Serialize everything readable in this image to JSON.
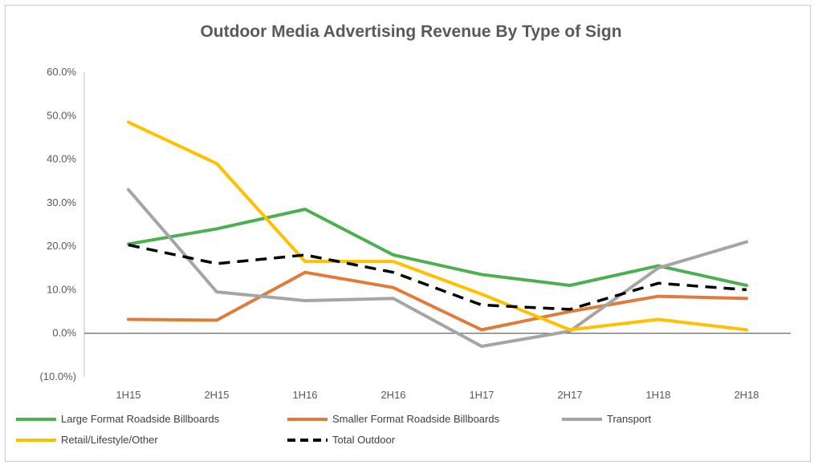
{
  "chart_data": {
    "type": "line",
    "title": "Outdoor Media Advertising Revenue By Type of Sign",
    "categories": [
      "1H15",
      "2H15",
      "1H16",
      "2H16",
      "1H17",
      "2H17",
      "1H18",
      "2H18"
    ],
    "ylim": [
      -10,
      60
    ],
    "yticks": [
      {
        "value": 60,
        "label": "60.0%"
      },
      {
        "value": 50,
        "label": "50.0%"
      },
      {
        "value": 40,
        "label": "40.0%"
      },
      {
        "value": 30,
        "label": "30.0%"
      },
      {
        "value": 20,
        "label": "20.0%"
      },
      {
        "value": 10,
        "label": "10.0%"
      },
      {
        "value": 0,
        "label": "0.0%"
      },
      {
        "value": -10,
        "label": "(10.0%)"
      }
    ],
    "negative_tick_color": "#ff0000",
    "grid": false,
    "legend_position": "bottom",
    "series": [
      {
        "name": "Large Format Roadside Billboards",
        "color": "#4caf50",
        "dash": false,
        "values": [
          20.5,
          24,
          28.5,
          18,
          13.5,
          11,
          15.5,
          11
        ]
      },
      {
        "name": "Smaller Format Roadside Billboards",
        "color": "#e07b39",
        "dash": false,
        "values": [
          3.2,
          3,
          14,
          10.5,
          0.8,
          5,
          8.5,
          8
        ]
      },
      {
        "name": "Transport",
        "color": "#a5a5a5",
        "dash": false,
        "values": [
          33,
          9.5,
          7.5,
          8,
          -3,
          0.5,
          15,
          21
        ]
      },
      {
        "name": "Retail/Lifestyle/Other",
        "color": "#ffc000",
        "dash": false,
        "values": [
          48.5,
          39,
          16.5,
          16.5,
          9,
          0.8,
          3.2,
          0.8
        ]
      },
      {
        "name": "Total Outdoor",
        "color": "#000000",
        "dash": true,
        "values": [
          20.3,
          16,
          18,
          14,
          6.5,
          5.5,
          11.5,
          10
        ]
      }
    ]
  }
}
